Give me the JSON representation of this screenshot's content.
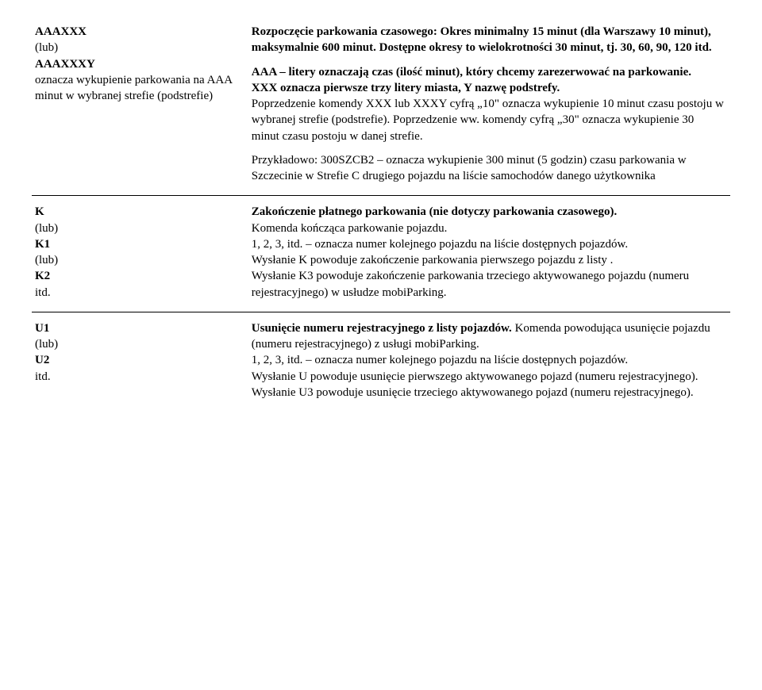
{
  "rows": [
    {
      "left": "<b>AAAXXX</b><br>(lub)<br><b>AAAXXXY</b><br>oznacza wykupienie parkowania na AAA minut w wybranej strefie (podstrefie)",
      "right_blocks": [
        "<b>Rozpoczęcie parkowania czasowego: Okres minimalny 15 minut (dla Warszawy 10 minut), maksymalnie 600 minut. Dostępne okresy to wielokrotności 30 minut, tj. 30, 60, 90, 120 itd.</b>",
        "<b>AAA – litery oznaczają czas (ilość minut), który chcemy zarezerwować na parkowanie.<br>XXX oznacza pierwsze trzy litery miasta, Y nazwę podstrefy.</b><br>Poprzedzenie komendy XXX lub XXXY cyfrą „10\" oznacza wykupienie 10 minut czasu postoju w wybranej strefie (podstrefie). Poprzedzenie ww. komendy cyfrą „30\" oznacza wykupienie 30 minut czasu postoju w danej strefie.",
        "Przykładowo: 300SZCB2 – oznacza wykupienie 300 minut (5 godzin) czasu parkowania w Szczecinie w Strefie C drugiego pojazdu na liście samochodów danego użytkownika"
      ]
    },
    {
      "left": "<b>K</b><br>(lub)<br><b>K1</b><br>(lub)<br><b>K2</b><br>itd.",
      "right_blocks": [
        "<b>Zakończenie płatnego parkowania (nie dotyczy parkowania czasowego).</b><br>Komenda kończąca parkowanie pojazdu.<br>1, 2, 3, itd. – oznacza numer kolejnego pojazdu na liście dostępnych pojazdów.<br>Wysłanie K powoduje zakończenie parkowania pierwszego pojazdu z listy .<br>Wysłanie K3 powoduje zakończenie parkowania trzeciego aktywowanego pojazdu (numeru rejestracyjnego) w usłudze mobiParking."
      ]
    },
    {
      "left": "<b>U1</b><br>(lub)<br><b>U2</b><br>itd.",
      "right_blocks": [
        "<b>Usunięcie numeru rejestracyjnego z listy pojazdów.</b> Komenda powodująca usunięcie pojazdu (numeru rejestracyjnego) z usługi mobiParking.<br>1, 2, 3, itd. – oznacza numer kolejnego pojazdu na liście dostępnych pojazdów.<br>Wysłanie U powoduje usunięcie pierwszego aktywowanego pojazd (numeru rejestracyjnego).<br>Wysłanie U3 powoduje usunięcie trzeciego aktywowanego pojazd (numeru rejestracyjnego)."
      ]
    }
  ]
}
